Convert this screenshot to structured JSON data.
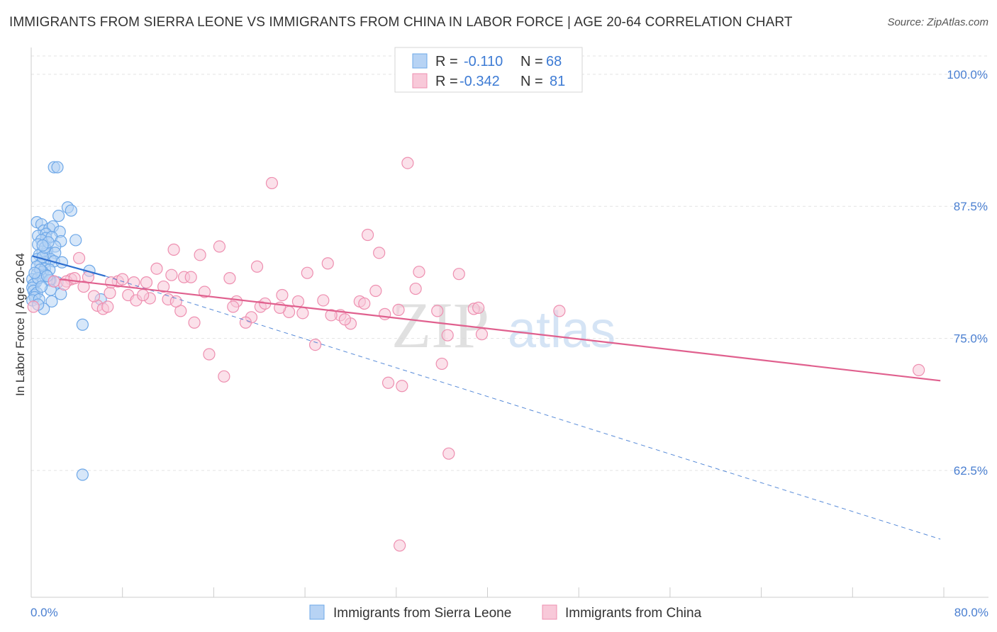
{
  "title": "IMMIGRANTS FROM SIERRA LEONE VS IMMIGRANTS FROM CHINA IN LABOR FORCE | AGE 20-64 CORRELATION CHART",
  "source": "Source: ZipAtlas.com",
  "watermark": {
    "zip": "ZIP",
    "atlas": "atlas"
  },
  "colors": {
    "blue": "#6ea8e8",
    "blue_fill": "#b7d3f4",
    "blue_line": "#2f6fcf",
    "pink": "#ee8fb0",
    "pink_fill": "#f8c9d9",
    "pink_line": "#e0608e",
    "tick_text": "#4a7fd1",
    "grid": "#e3e3e3"
  },
  "legend": [
    {
      "r_label": "R =",
      "r_value": "-0.110",
      "n_label": "N =",
      "n_value": "68"
    },
    {
      "r_label": "R =",
      "r_value": "-0.342",
      "n_label": "N =",
      "n_value": "81"
    }
  ],
  "chart_data": {
    "type": "scatter",
    "title": "IMMIGRANTS FROM SIERRA LEONE VS IMMIGRANTS FROM CHINA IN LABOR FORCE | AGE 20-64 CORRELATION CHART",
    "xlabel": "",
    "ylabel": "In Labor Force | Age 20-64",
    "xlim": [
      0,
      80
    ],
    "ylim": [
      50.5,
      102
    ],
    "x_tick_labels": [
      "0.0%",
      "80.0%"
    ],
    "x_ticks": [
      0,
      80
    ],
    "y_tick_labels": [
      "62.5%",
      "75.0%",
      "87.5%",
      "100.0%"
    ],
    "y_ticks": [
      62.5,
      75.0,
      87.5,
      100.0
    ],
    "grid": true,
    "legend_placement": "top-center",
    "series": [
      {
        "name": "Immigrants from Sierra Leone",
        "color": "#6ea8e8",
        "trend_solid": {
          "x": [
            0.1,
            6.5
          ],
          "y": [
            82.8,
            80.9
          ]
        },
        "trend_dashed": {
          "x": [
            6.5,
            79.7
          ],
          "y": [
            80.9,
            56.0
          ]
        },
        "x": [
          2.0,
          2.3,
          3.2,
          3.5,
          2.4,
          0.5,
          0.9,
          1.1,
          1.6,
          1.9,
          2.5,
          0.6,
          1.3,
          1.3,
          0.9,
          1.8,
          2.6,
          2.1,
          0.6,
          1.0,
          1.4,
          0.7,
          1.3,
          0.5,
          2.1,
          1.7,
          2.0,
          1.2,
          0.8,
          0.5,
          1.2,
          1.6,
          1.0,
          0.5,
          1.3,
          0.9,
          1.7,
          0.4,
          0.1,
          0.2,
          0.1,
          0.2,
          0.3,
          0.5,
          0.3,
          0.1,
          0.7,
          1.8,
          2.6,
          2.3,
          1.0,
          1.2,
          1.5,
          5.1,
          3.9,
          6.1,
          2.7,
          0.8,
          0.6,
          1.6,
          1.7,
          1.1,
          0.6,
          4.5,
          1.4,
          0.9,
          1.0,
          0.3
        ],
        "y": [
          91.2,
          91.2,
          87.4,
          87.1,
          86.6,
          86.0,
          85.8,
          85.2,
          85.4,
          85.6,
          85.1,
          84.7,
          84.9,
          84.5,
          84.3,
          84.6,
          84.2,
          83.7,
          83.9,
          83.2,
          83.3,
          82.9,
          83.0,
          82.5,
          83.1,
          82.5,
          82.3,
          82.2,
          82.0,
          81.8,
          81.6,
          81.5,
          81.3,
          81.1,
          81.0,
          80.8,
          80.5,
          80.3,
          80.6,
          80.1,
          79.8,
          79.5,
          79.1,
          79.3,
          78.9,
          78.6,
          78.7,
          78.5,
          79.2,
          80.3,
          82.7,
          83.6,
          84.1,
          81.4,
          84.3,
          78.7,
          82.2,
          81.5,
          80.7,
          80.5,
          79.6,
          77.8,
          78.2,
          76.3,
          80.9,
          79.9,
          83.8,
          81.2
        ]
      },
      {
        "name": "Immigrants from China",
        "color": "#ee8fb0",
        "trend_solid": {
          "x": [
            2.5,
            79.7
          ],
          "y": [
            80.6,
            71.0
          ]
        },
        "x": [
          33.0,
          21.1,
          29.5,
          16.5,
          12.5,
          30.5,
          19.8,
          11.0,
          3.5,
          4.2,
          9.0,
          14.8,
          17.4,
          7.6,
          24.2,
          26.0,
          34.0,
          35.6,
          3.1,
          5.0,
          5.8,
          6.9,
          8.5,
          9.2,
          10.4,
          12.0,
          13.1,
          14.3,
          15.2,
          18.0,
          19.3,
          20.1,
          22.6,
          23.4,
          27.1,
          28.0,
          31.0,
          32.2,
          36.5,
          2.9,
          4.6,
          6.3,
          7.0,
          8.0,
          10.1,
          11.6,
          13.4,
          15.6,
          16.9,
          18.8,
          20.5,
          21.8,
          24.9,
          26.3,
          28.8,
          30.2,
          2.0,
          3.8,
          5.5,
          6.7,
          9.8,
          12.7,
          14.0,
          17.7,
          22.0,
          23.8,
          25.6,
          27.5,
          29.2,
          33.7,
          36.0,
          38.8,
          39.5,
          37.5,
          32.5,
          39.2,
          31.3,
          36.6,
          77.8,
          46.3,
          12.3
        ],
        "y": [
          91.6,
          89.7,
          84.8,
          83.7,
          83.4,
          83.1,
          81.8,
          81.6,
          80.6,
          82.6,
          80.3,
          82.9,
          80.7,
          80.4,
          81.2,
          82.1,
          81.3,
          77.6,
          80.4,
          80.8,
          78.1,
          79.3,
          79.1,
          78.6,
          78.8,
          78.7,
          77.6,
          76.5,
          79.4,
          78.5,
          77.0,
          78.0,
          77.5,
          78.5,
          77.2,
          76.4,
          77.3,
          77.7,
          75.3,
          80.1,
          79.9,
          77.8,
          80.3,
          80.6,
          80.3,
          79.9,
          80.8,
          73.5,
          71.4,
          76.5,
          78.3,
          77.9,
          74.4,
          77.2,
          78.5,
          79.5,
          80.4,
          80.7,
          79.0,
          78.0,
          79.1,
          78.5,
          80.8,
          78.0,
          79.1,
          77.4,
          78.6,
          76.8,
          78.3,
          79.7,
          72.6,
          77.8,
          75.4,
          81.1,
          70.5,
          77.9,
          70.8,
          64.1,
          72.0,
          77.6,
          81.0
        ],
        "extra_points_note": ""
      }
    ],
    "extra_points": {
      "Immigrants from Sierra Leone": {
        "x": [
          4.5
        ],
        "y": [
          62.1
        ]
      },
      "Immigrants from China": {
        "x": [
          32.3,
          0.2
        ],
        "y": [
          55.4,
          78.0
        ]
      }
    }
  },
  "bottom_legend": [
    {
      "label": "Immigrants from Sierra Leone"
    },
    {
      "label": "Immigrants from China"
    }
  ]
}
